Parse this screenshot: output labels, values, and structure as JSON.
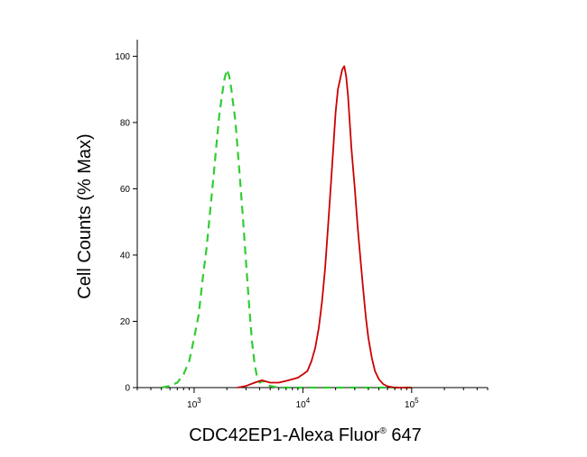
{
  "chart_data": {
    "type": "line",
    "xlabel": "CDC42EP1-Alexa Fluor® 647",
    "xlabel_parts": {
      "main": "CDC42EP1-Alexa Fluor",
      "reg": "®",
      "suffix": " 647"
    },
    "ylabel": "Cell Counts (% Max)",
    "x_scale": "log",
    "xlim": [
      300,
      500000
    ],
    "ylim": [
      0,
      105
    ],
    "x_ticks": [
      {
        "value": 1000,
        "base": "10",
        "exp": "3"
      },
      {
        "value": 10000,
        "base": "10",
        "exp": "4"
      },
      {
        "value": 100000,
        "base": "10",
        "exp": "5"
      }
    ],
    "y_ticks": [
      {
        "value": 0,
        "label": "0"
      },
      {
        "value": 20,
        "label": "20"
      },
      {
        "value": 40,
        "label": "40"
      },
      {
        "value": 60,
        "label": "60"
      },
      {
        "value": 80,
        "label": "80"
      },
      {
        "value": 100,
        "label": "100"
      }
    ],
    "grid": false,
    "series": [
      {
        "color": "#33cc33",
        "dash": true,
        "points": [
          [
            500,
            0
          ],
          [
            600,
            0.5
          ],
          [
            700,
            1.5
          ],
          [
            800,
            4
          ],
          [
            900,
            8
          ],
          [
            1000,
            15
          ],
          [
            1100,
            22
          ],
          [
            1200,
            33
          ],
          [
            1300,
            42
          ],
          [
            1400,
            53
          ],
          [
            1500,
            63
          ],
          [
            1600,
            73
          ],
          [
            1700,
            82
          ],
          [
            1800,
            88
          ],
          [
            1900,
            93
          ],
          [
            2000,
            96
          ],
          [
            2100,
            94
          ],
          [
            2200,
            90
          ],
          [
            2400,
            80
          ],
          [
            2600,
            66
          ],
          [
            2800,
            52
          ],
          [
            3000,
            38
          ],
          [
            3200,
            25
          ],
          [
            3400,
            14
          ],
          [
            3600,
            7
          ],
          [
            3800,
            3
          ],
          [
            4000,
            1.5
          ],
          [
            4300,
            2
          ],
          [
            4600,
            1.2
          ],
          [
            5000,
            0.5
          ],
          [
            6000,
            0
          ],
          [
            100000,
            0
          ]
        ]
      },
      {
        "color": "#cc0000",
        "dash": false,
        "points": [
          [
            2500,
            0
          ],
          [
            3000,
            0.5
          ],
          [
            3600,
            1.5
          ],
          [
            4200,
            2.2
          ],
          [
            5000,
            1.5
          ],
          [
            6000,
            1.5
          ],
          [
            7000,
            2
          ],
          [
            8000,
            2.5
          ],
          [
            9000,
            3
          ],
          [
            10000,
            4
          ],
          [
            11000,
            5
          ],
          [
            12000,
            8
          ],
          [
            13000,
            12
          ],
          [
            14000,
            18
          ],
          [
            15000,
            26
          ],
          [
            16000,
            36
          ],
          [
            17000,
            48
          ],
          [
            18000,
            60
          ],
          [
            19000,
            72
          ],
          [
            20000,
            83
          ],
          [
            21000,
            90
          ],
          [
            22000,
            93
          ],
          [
            23000,
            96
          ],
          [
            24000,
            97
          ],
          [
            25000,
            94
          ],
          [
            26000,
            88
          ],
          [
            27000,
            80
          ],
          [
            28000,
            72
          ],
          [
            30000,
            60
          ],
          [
            32000,
            48
          ],
          [
            34000,
            38
          ],
          [
            36000,
            29
          ],
          [
            38000,
            21
          ],
          [
            40000,
            15
          ],
          [
            43000,
            9
          ],
          [
            46000,
            5
          ],
          [
            50000,
            2.5
          ],
          [
            55000,
            1
          ],
          [
            60000,
            0.4
          ],
          [
            70000,
            0
          ],
          [
            100000,
            0
          ]
        ]
      }
    ]
  }
}
